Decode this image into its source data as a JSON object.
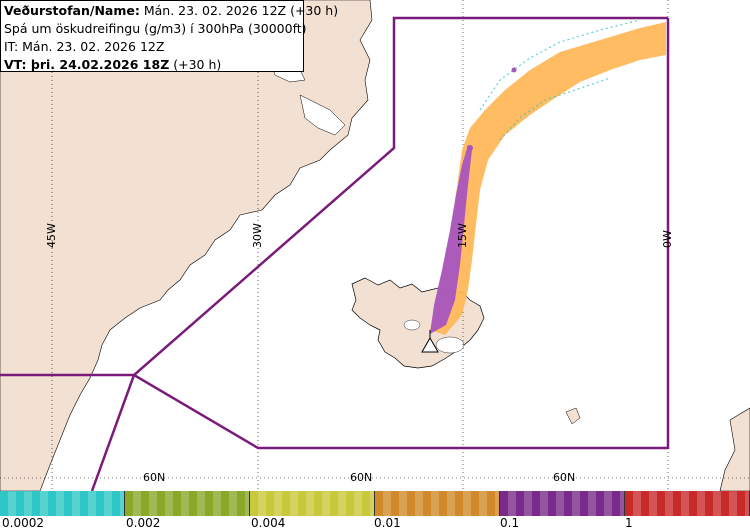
{
  "header": {
    "name_label": "Veðurstofan/Name:",
    "name_value": " Mán. 23. 02. 2026 12Z (+30 h)",
    "product": "Spá um öskudreifingu (g/m3) í 300hPa (30000ft)",
    "it_line": "IT: Mán. 23. 02. 2026 12Z",
    "vt_label": "VT: þri. 24.02.2026 18Z",
    "vt_value": " (+30 h)"
  },
  "grid_labels": {
    "lon_45w": "45W",
    "lon_30w": "30W",
    "lon_15w": "15W",
    "lon_0w": "0W",
    "lat_60n_a": "60N",
    "lat_60n_b": "60N",
    "lat_60n_c": "60N"
  },
  "legend": {
    "labels": [
      "0.0002",
      "0.002",
      "0.004",
      "0.01",
      "0.1",
      "1"
    ],
    "colors": [
      "#2ec6c6",
      "#8aa82a",
      "#c8c83a",
      "#d08a2a",
      "#7a2a8a",
      "#c82a2a"
    ]
  },
  "colors": {
    "land": "#f2e0d2",
    "sea": "#ffffff",
    "region_boundary": "#7a1a7a",
    "plume_outer": "#ffb85a",
    "plume_inner": "#a855c0"
  },
  "volcano_symbol": "triangle-volcano-icon"
}
